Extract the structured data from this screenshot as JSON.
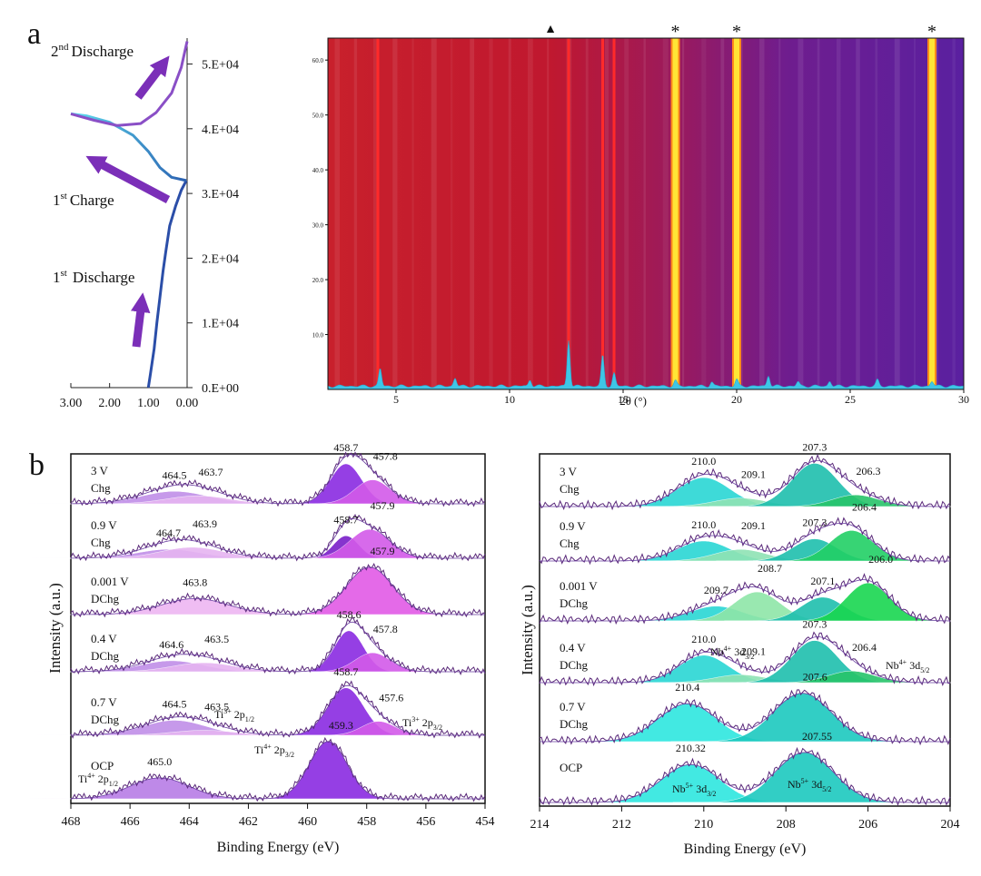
{
  "figure": {
    "panel_a_label": "a",
    "panel_b_label": "b"
  },
  "chart_data": [
    {
      "id": "galvanostatic-profile",
      "type": "line",
      "title": "",
      "xlabel": "",
      "ylabel": "",
      "x_ticks": [
        "3.00",
        "2.00",
        "1.00",
        "0.00"
      ],
      "xlim": [
        3.0,
        0.0
      ],
      "y_ticks": [
        "0.E+00",
        "1.E+04",
        "2.E+04",
        "3.E+04",
        "4.E+04",
        "5.E+04"
      ],
      "ylim": [
        0,
        54000
      ],
      "annotations": {
        "second_discharge": "Discharge",
        "second_discharge_sup": "nd",
        "second_discharge_num": "2",
        "first_charge": "Charge",
        "first_charge_sup": "st",
        "first_charge_num": "1",
        "first_discharge": "Discharge",
        "first_discharge_sup": "st",
        "first_discharge_num": "1"
      },
      "series": [
        {
          "name": "1st Discharge",
          "color": "#2b4ea8",
          "x": [
            1.0,
            0.95,
            0.85,
            0.78,
            0.7,
            0.62,
            0.55,
            0.45,
            0.3,
            0.15,
            0.02
          ],
          "y": [
            0,
            2000,
            6000,
            10000,
            14000,
            18000,
            21000,
            25000,
            28000,
            30500,
            32000
          ]
        },
        {
          "name": "1st Charge",
          "color": "#3fa9d8",
          "x": [
            0.02,
            0.4,
            0.7,
            1.0,
            1.4,
            2.0,
            2.6,
            3.0
          ],
          "y": [
            32000,
            32500,
            34000,
            36500,
            39000,
            41000,
            42000,
            42300
          ]
        },
        {
          "name": "2nd Discharge",
          "color": "#8a4fc6",
          "x": [
            3.0,
            2.4,
            1.8,
            1.2,
            0.8,
            0.4,
            0.15,
            0.0
          ],
          "y": [
            42300,
            41300,
            40500,
            40800,
            42500,
            45500,
            49500,
            53500
          ]
        }
      ]
    },
    {
      "id": "operando-xrd-heatmap",
      "type": "heatmap",
      "title": "",
      "xlabel": "2θ (°)",
      "ylabel": "",
      "x_ticks": [
        "5",
        "10",
        "15",
        "20",
        "25",
        "30"
      ],
      "xlim": [
        2,
        30
      ],
      "y_ticks": [
        "10.0",
        "20.0",
        "30.0",
        "40.0",
        "50.0",
        "60.0"
      ],
      "ylim": [
        0,
        64
      ],
      "markers": [
        {
          "label": "▲",
          "x": 11.8
        },
        {
          "label": "*",
          "x": 17.3
        },
        {
          "label": "*",
          "x": 20.0
        },
        {
          "label": "*",
          "x": 28.6
        }
      ],
      "bright_lines_red": [
        4.2,
        12.6,
        14.1,
        14.6
      ],
      "bright_lines_yellow": [
        17.3,
        20.0,
        28.6
      ],
      "pattern_peaks": [
        {
          "x": 4.3,
          "h": 3.2
        },
        {
          "x": 7.6,
          "h": 1.5
        },
        {
          "x": 10.9,
          "h": 1.2
        },
        {
          "x": 12.6,
          "h": 8.5
        },
        {
          "x": 14.1,
          "h": 5.6
        },
        {
          "x": 14.6,
          "h": 2.4
        },
        {
          "x": 17.3,
          "h": 1.0
        },
        {
          "x": 18.9,
          "h": 0.8
        },
        {
          "x": 20.0,
          "h": 1.2
        },
        {
          "x": 21.4,
          "h": 2.0
        },
        {
          "x": 22.7,
          "h": 0.8
        },
        {
          "x": 24.1,
          "h": 0.9
        },
        {
          "x": 26.2,
          "h": 1.1
        },
        {
          "x": 28.6,
          "h": 0.9
        }
      ]
    },
    {
      "id": "xps-ti-2p",
      "type": "area",
      "title": "",
      "xlabel": "Binding Energy (eV)",
      "ylabel": "Intensity (a.u.)",
      "x_ticks": [
        "468",
        "466",
        "464",
        "462",
        "460",
        "458",
        "456",
        "454"
      ],
      "xlim": [
        468,
        454
      ],
      "rows": [
        {
          "state": "3 V",
          "mode": "Chg",
          "labels": [
            "464.5",
            "463.7",
            "458.7",
            "457.8"
          ],
          "peaks": [
            {
              "center": 464.5,
              "height": 0.25,
              "width": 1.6,
              "color": "#c08fe8"
            },
            {
              "center": 463.7,
              "height": 0.16,
              "width": 1.5,
              "color": "#e6b4f1"
            },
            {
              "center": 458.7,
              "height": 0.8,
              "width": 0.75,
              "color": "#8a2be2"
            },
            {
              "center": 457.8,
              "height": 0.48,
              "width": 0.85,
              "color": "#d35ae9"
            }
          ]
        },
        {
          "state": "0.9 V",
          "mode": "Chg",
          "labels": [
            "464.7",
            "463.9",
            "458.7",
            "457.9"
          ],
          "peaks": [
            {
              "center": 464.7,
              "height": 0.18,
              "width": 1.5,
              "color": "#c08fe8"
            },
            {
              "center": 463.9,
              "height": 0.22,
              "width": 1.5,
              "color": "#e6b4f1"
            },
            {
              "center": 458.7,
              "height": 0.45,
              "width": 0.6,
              "color": "#7a1fc9"
            },
            {
              "center": 457.9,
              "height": 0.58,
              "width": 0.95,
              "color": "#d35ae9"
            }
          ]
        },
        {
          "state": "0.001 V",
          "mode": "DChg",
          "labels": [
            "463.8",
            "457.9"
          ],
          "peaks": [
            {
              "center": 463.8,
              "height": 0.32,
              "width": 1.6,
              "color": "#eeb6f2"
            },
            {
              "center": 457.9,
              "height": 0.95,
              "width": 1.1,
              "color": "#e25ae6"
            }
          ]
        },
        {
          "state": "0.4 V",
          "mode": "DChg",
          "labels": [
            "464.6",
            "463.5",
            "458.6",
            "457.8"
          ],
          "peaks": [
            {
              "center": 464.6,
              "height": 0.22,
              "width": 1.5,
              "color": "#c08fe8"
            },
            {
              "center": 463.5,
              "height": 0.18,
              "width": 1.5,
              "color": "#e6b4f1"
            },
            {
              "center": 458.6,
              "height": 0.82,
              "width": 0.7,
              "color": "#8a2be2"
            },
            {
              "center": 457.8,
              "height": 0.38,
              "width": 0.85,
              "color": "#d35ae9"
            }
          ]
        },
        {
          "state": "0.7 V",
          "mode": "DChg",
          "labels": [
            "464.5",
            "463.5",
            "458.7",
            "457.6"
          ],
          "peaks": [
            {
              "center": 464.5,
              "height": 0.3,
              "width": 1.5,
              "color": "#c08fe8"
            },
            {
              "center": 463.5,
              "height": 0.1,
              "width": 1.5,
              "color": "#e6b4f1"
            },
            {
              "center": 458.7,
              "height": 0.95,
              "width": 0.85,
              "color": "#8a2be2"
            },
            {
              "center": 457.6,
              "height": 0.28,
              "width": 0.8,
              "color": "#d35ae9"
            }
          ]
        },
        {
          "state": "OCP",
          "mode": "",
          "labels": [
            "465.0",
            "459.3"
          ],
          "peaks": [
            {
              "center": 465.0,
              "height": 0.42,
              "width": 1.4,
              "color": "#b77de6"
            },
            {
              "center": 459.3,
              "height": 1.15,
              "width": 0.9,
              "color": "#8a2be2"
            }
          ]
        }
      ],
      "annotations": {
        "ti3_1": "Ti",
        "ti3_1_sup": "3+",
        "ti3_1_main": " 2p",
        "ti3_1_sub": "1/2",
        "ti3_3": "Ti",
        "ti3_3_sup": "3+",
        "ti3_3_main": " 2p",
        "ti3_3_sub": "3/2",
        "ti4_1": "Ti",
        "ti4_1_sup": "4+",
        "ti4_1_main": " 2p",
        "ti4_1_sub": "1/2",
        "ti4_3": "Ti",
        "ti4_3_sup": "4+",
        "ti4_3_main": " 2p",
        "ti4_3_sub": "3/2"
      }
    },
    {
      "id": "xps-nb-3d",
      "type": "area",
      "title": "",
      "xlabel": "Binding Energy (eV)",
      "ylabel": "Intensity (a.u.)",
      "x_ticks": [
        "214",
        "212",
        "210",
        "208",
        "206",
        "204"
      ],
      "xlim": [
        214,
        204
      ],
      "rows": [
        {
          "state": "3 V",
          "mode": "Chg",
          "labels": [
            "210.0",
            "209.1",
            "207.3",
            "206.3"
          ],
          "peaks": [
            {
              "center": 210.0,
              "height": 0.55,
              "width": 0.9,
              "color": "#2ad6d4"
            },
            {
              "center": 209.1,
              "height": 0.16,
              "width": 0.9,
              "color": "#8fe3b4"
            },
            {
              "center": 207.3,
              "height": 0.82,
              "width": 0.8,
              "color": "#1fbfae"
            },
            {
              "center": 206.3,
              "height": 0.22,
              "width": 0.8,
              "color": "#27c46a"
            }
          ]
        },
        {
          "state": "0.9 V",
          "mode": "Chg",
          "labels": [
            "210.0",
            "209.1",
            "207.3",
            "206.4"
          ],
          "peaks": [
            {
              "center": 210.0,
              "height": 0.38,
              "width": 0.9,
              "color": "#2ad6d4"
            },
            {
              "center": 209.1,
              "height": 0.22,
              "width": 0.9,
              "color": "#8fe3b4"
            },
            {
              "center": 207.3,
              "height": 0.42,
              "width": 0.75,
              "color": "#1fbfae"
            },
            {
              "center": 206.4,
              "height": 0.58,
              "width": 0.75,
              "color": "#22d066"
            }
          ]
        },
        {
          "state": "0.001 V",
          "mode": "DChg",
          "labels": [
            "209.7",
            "208.7",
            "207.1",
            "206.0"
          ],
          "peaks": [
            {
              "center": 209.7,
              "height": 0.28,
              "width": 0.9,
              "color": "#2ad6d4"
            },
            {
              "center": 208.7,
              "height": 0.55,
              "width": 0.8,
              "color": "#8ee6a8"
            },
            {
              "center": 207.1,
              "height": 0.45,
              "width": 0.75,
              "color": "#1fbfae"
            },
            {
              "center": 206.0,
              "height": 0.72,
              "width": 0.75,
              "color": "#19d650"
            }
          ]
        },
        {
          "state": "0.4 V",
          "mode": "DChg",
          "labels": [
            "210.0",
            "209.1",
            "207.3",
            "206.4"
          ],
          "peaks": [
            {
              "center": 210.0,
              "height": 0.52,
              "width": 0.85,
              "color": "#2ad6d4"
            },
            {
              "center": 209.1,
              "height": 0.15,
              "width": 0.9,
              "color": "#8fe3b4"
            },
            {
              "center": 207.3,
              "height": 0.8,
              "width": 0.8,
              "color": "#1fbfae"
            },
            {
              "center": 206.4,
              "height": 0.22,
              "width": 0.8,
              "color": "#27c46a"
            }
          ]
        },
        {
          "state": "0.7 V",
          "mode": "DChg",
          "labels": [
            "210.4",
            "207.6"
          ],
          "peaks": [
            {
              "center": 210.4,
              "height": 0.72,
              "width": 1.0,
              "color": "#2ee7df"
            },
            {
              "center": 207.6,
              "height": 0.92,
              "width": 1.0,
              "color": "#1cc9bf"
            }
          ]
        },
        {
          "state": "OCP",
          "mode": "",
          "labels": [
            "210.32",
            "207.55"
          ],
          "peaks": [
            {
              "center": 210.32,
              "height": 0.72,
              "width": 1.0,
              "color": "#2ee7df"
            },
            {
              "center": 207.55,
              "height": 0.95,
              "width": 1.0,
              "color": "#1cc9bf"
            }
          ]
        }
      ],
      "annotations": {
        "nb4_1": "Nb",
        "nb4_1_sup": "4+",
        "nb4_1_main": " 3d",
        "nb4_1_sub": "3/2",
        "nb4_3": "Nb",
        "nb4_3_sup": "4+",
        "nb4_3_main": " 3d",
        "nb4_3_sub": "5/2",
        "nb5_1": "Nb",
        "nb5_1_sup": "5+",
        "nb5_1_main": " 3d",
        "nb5_1_sub": "3/2",
        "nb5_3": "Nb",
        "nb5_3_sup": "5+",
        "nb5_3_main": " 3d",
        "nb5_3_sub": "5/2"
      }
    }
  ]
}
